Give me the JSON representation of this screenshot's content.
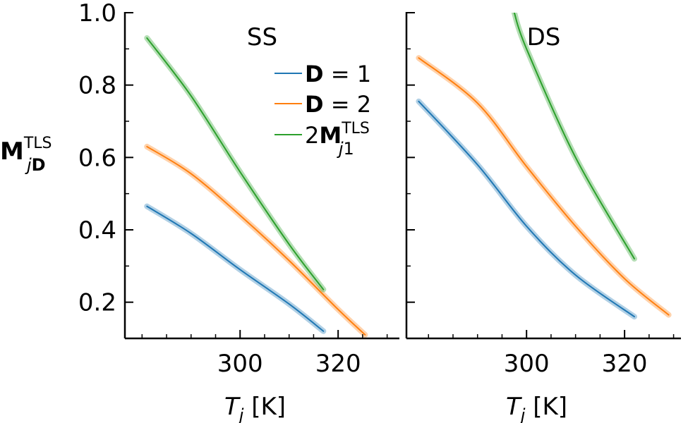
{
  "chart_data": [
    {
      "type": "line",
      "title": "SS",
      "xlabel_var": "T",
      "xlabel_sub": "j",
      "xlabel_unit": "[K]",
      "ylabel_main": "M",
      "ylabel_sub": "jD",
      "ylabel_sup": "TLS",
      "xlim": [
        276.5,
        332.5
      ],
      "ylim": [
        0.1,
        1.0
      ],
      "xticks": [
        300,
        320
      ],
      "yticks": [
        0.2,
        0.4,
        0.6,
        0.8,
        1.0
      ],
      "ytick_labels": [
        "0.2",
        "0.4",
        "0.6",
        "0.8",
        "1.0"
      ],
      "grid": false,
      "legend_position": "top-right",
      "series": [
        {
          "label_bold": "D",
          "label_rest": " = 1",
          "color": "#1f77b4",
          "x": [
            281,
            290,
            300,
            310,
            317
          ],
          "y": [
            0.465,
            0.39,
            0.29,
            0.195,
            0.12
          ]
        },
        {
          "label_bold": "D",
          "label_rest": " = 2",
          "color": "#ff7f0e",
          "x": [
            281,
            290,
            300,
            310,
            320,
            325.5
          ],
          "y": [
            0.63,
            0.555,
            0.44,
            0.315,
            0.18,
            0.11
          ]
        },
        {
          "label_prefix": "2",
          "label_bold": "M",
          "label_sub": "j1",
          "label_sup": "TLS",
          "color": "#2ca02c",
          "x": [
            281,
            290,
            300,
            310,
            317
          ],
          "y": [
            0.93,
            0.77,
            0.56,
            0.36,
            0.235
          ]
        }
      ]
    },
    {
      "type": "line",
      "title": "DS",
      "xlabel_var": "T",
      "xlabel_sub": "j",
      "xlabel_unit": "[K]",
      "xlim": [
        275.5,
        331.5
      ],
      "ylim": [
        0.1,
        1.0
      ],
      "xticks": [
        300,
        320
      ],
      "yticks": [
        0.2,
        0.4,
        0.6,
        0.8,
        1.0
      ],
      "grid": false,
      "series": [
        {
          "color": "#1f77b4",
          "x": [
            278,
            290,
            300,
            310,
            322
          ],
          "y": [
            0.755,
            0.58,
            0.41,
            0.275,
            0.16
          ]
        },
        {
          "color": "#ff7f0e",
          "x": [
            278,
            290,
            300,
            310,
            320,
            329
          ],
          "y": [
            0.875,
            0.75,
            0.575,
            0.41,
            0.265,
            0.165
          ]
        },
        {
          "color": "#2ca02c",
          "x": [
            297.5,
            300,
            310,
            322
          ],
          "y": [
            1.0,
            0.9,
            0.6,
            0.32
          ]
        }
      ]
    }
  ]
}
